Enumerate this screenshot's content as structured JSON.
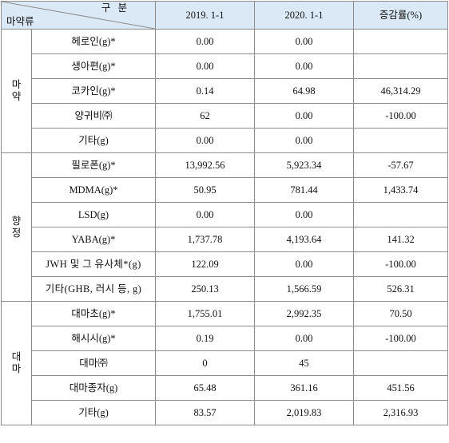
{
  "header": {
    "corner_top": "구 분",
    "corner_bottom": "마약류",
    "col_2019": "2019. 1-1",
    "col_2020": "2020. 1-1",
    "col_change": "증감률(%)"
  },
  "groups": [
    {
      "label_chars": [
        "마",
        "약"
      ],
      "rows": [
        {
          "item": "헤로인(g)*",
          "v2019": "0.00",
          "v2020": "0.00",
          "change": ""
        },
        {
          "item": "생아편(g)*",
          "v2019": "0.00",
          "v2020": "0.00",
          "change": ""
        },
        {
          "item": "코카인(g)*",
          "v2019": "0.14",
          "v2020": "64.98",
          "change": "46,314.29"
        },
        {
          "item": "양귀비㈜",
          "v2019": "62",
          "v2020": "0.00",
          "change": "-100.00"
        },
        {
          "item": "기타(g)",
          "v2019": "0.00",
          "v2020": "0.00",
          "change": ""
        }
      ]
    },
    {
      "label_chars": [
        "향",
        "정"
      ],
      "rows": [
        {
          "item": "필로폰(g)*",
          "v2019": "13,992.56",
          "v2020": "5,923.34",
          "change": "-57.67"
        },
        {
          "item": "MDMA(g)*",
          "v2019": "50.95",
          "v2020": "781.44",
          "change": "1,433.74"
        },
        {
          "item": "LSD(g)",
          "v2019": "0.00",
          "v2020": "0.00",
          "change": ""
        },
        {
          "item": "YABA(g)*",
          "v2019": "1,737.78",
          "v2020": "4,193.64",
          "change": "141.32"
        },
        {
          "item": "JWH 및 그 유사체*(g)",
          "v2019": "122.09",
          "v2020": "0.00",
          "change": "-100.00"
        },
        {
          "item": "기타(GHB, 러시 등, g)",
          "v2019": "250.13",
          "v2020": "1,566.59",
          "change": "526.31"
        }
      ]
    },
    {
      "label_chars": [
        "대",
        "마"
      ],
      "rows": [
        {
          "item": "대마초(g)*",
          "v2019": "1,755.01",
          "v2020": "2,992.35",
          "change": "70.50"
        },
        {
          "item": "해시시(g)*",
          "v2019": "0.19",
          "v2020": "0.00",
          "change": "-100.00"
        },
        {
          "item": "대마㈜",
          "v2019": "0",
          "v2020": "45",
          "change": ""
        },
        {
          "item": "대마종자(g)",
          "v2019": "65.48",
          "v2020": "361.16",
          "change": "451.56"
        },
        {
          "item": "기타(g)",
          "v2019": "83.57",
          "v2020": "2,019.83",
          "change": "2,316.93"
        }
      ]
    }
  ]
}
